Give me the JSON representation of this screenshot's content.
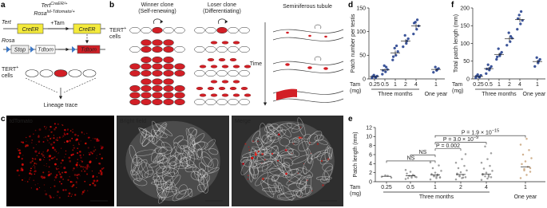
{
  "panel_a": {
    "label": "a",
    "genotype": [
      {
        "gene": "Tert",
        "sup": "CreER/+"
      },
      {
        "gene": "Rosa",
        "sup": "lsl-Tdtomato/+"
      }
    ],
    "tert": "Tert",
    "rosa": "Rosa",
    "creer": [
      "CreER",
      "CreER"
    ],
    "tam": "+Tam",
    "stop": "Stop",
    "tdtom": [
      "Tdtom",
      "Tdtom"
    ],
    "cells": {
      "name": "TERT",
      "sup": "+",
      "rest": "cells"
    },
    "lineage": "Lineage trace"
  },
  "panel_b": {
    "label": "b",
    "winner": [
      "Winner clone",
      "(Self-renewing)"
    ],
    "loser": [
      "Loser clone",
      "(Differentiating)"
    ],
    "tubule": "Seminiferous tubule",
    "cells": {
      "name": "TERT",
      "sup": "+",
      "rest": "cells"
    },
    "time": "Time"
  },
  "panel_c": {
    "label": "c",
    "images": [
      "tdTomato",
      "Bright field",
      "Merge"
    ]
  },
  "chart_data": [
    {
      "type": "strip",
      "panel_label": "d",
      "ylabel": "Patch number per testis",
      "xlabel": [
        "Tam",
        "(mg)"
      ],
      "categories": [
        "0.25",
        "0.5",
        "1",
        "2",
        "4",
        "1"
      ],
      "groups": [
        "Three months",
        "One year"
      ],
      "points": [
        [
          2,
          4,
          6,
          8,
          3,
          5
        ],
        [
          10,
          15,
          20,
          28,
          25,
          18
        ],
        [
          40,
          50,
          58,
          65,
          70,
          47
        ],
        [
          68,
          75,
          85,
          92,
          80
        ],
        [
          95,
          105,
          112,
          120,
          125,
          118
        ],
        [
          14,
          18,
          22,
          25,
          20
        ]
      ],
      "means": [
        5,
        19,
        55,
        80,
        112,
        20
      ],
      "sem": [
        1,
        3,
        5,
        4,
        5,
        2
      ],
      "point_color": "#1d3a8a",
      "mean_color": "#4a7fe0",
      "ylim": [
        0,
        150
      ],
      "yticks": [
        0,
        50,
        100,
        150
      ]
    },
    {
      "type": "strip",
      "panel_label": "f",
      "ylabel": "Total patch length (mm)",
      "xlabel": [
        "Tam",
        "(mg)"
      ],
      "categories": [
        "0.25",
        "0.5",
        "1",
        "2",
        "4",
        "1"
      ],
      "groups": [
        "Three months",
        "One year"
      ],
      "points": [
        [
          3,
          6,
          10,
          12,
          5,
          8
        ],
        [
          15,
          25,
          35,
          40,
          30,
          28
        ],
        [
          55,
          65,
          75,
          85,
          70,
          62
        ],
        [
          95,
          105,
          115,
          130,
          120
        ],
        [
          140,
          155,
          165,
          180,
          190,
          170
        ],
        [
          35,
          45,
          55,
          60,
          50
        ]
      ],
      "means": [
        7,
        29,
        69,
        113,
        167,
        49
      ],
      "sem": [
        1.5,
        4,
        4,
        6,
        7,
        4
      ],
      "point_color": "#1d3a8a",
      "mean_color": "#4a7fe0",
      "ylim": [
        0,
        200
      ],
      "yticks": [
        0,
        50,
        100,
        150,
        200
      ]
    },
    {
      "type": "strip",
      "panel_label": "e",
      "ylabel": "Patch length (mm)",
      "xlabel": [
        "Tam",
        "(mg)"
      ],
      "categories": [
        "0.25",
        "0.5",
        "1",
        "2",
        "4",
        "1"
      ],
      "groups": [
        "Three months",
        "One year"
      ],
      "points": [
        [
          1.1,
          1.3,
          0.9,
          1.4
        ],
        [
          0.6,
          0.9,
          1.1,
          1.3,
          1.5,
          1.8,
          2.2,
          1.0,
          0.8,
          1.4,
          2.6,
          1.2
        ],
        [
          0.5,
          0.8,
          1.0,
          1.2,
          1.4,
          1.7,
          2.0,
          2.4,
          3.0,
          3.6,
          4.3,
          1.1,
          0.9,
          1.3,
          1.6
        ],
        [
          0.5,
          0.8,
          1.0,
          1.2,
          1.5,
          1.8,
          2.1,
          2.5,
          3.0,
          3.5,
          4.2,
          5.0,
          6.1,
          1.3,
          0.9,
          1.6
        ],
        [
          0.4,
          0.7,
          1.0,
          1.2,
          1.4,
          1.7,
          2.0,
          2.4,
          2.9,
          3.5,
          4.2,
          5.0,
          6.3,
          7.8,
          1.1,
          1.5
        ],
        [
          0.8,
          1.5,
          2.2,
          2.8,
          3.3,
          3.9,
          4.5,
          5.2,
          6.0,
          7.0,
          8.2,
          9.5,
          3.0,
          2.5
        ]
      ],
      "means": [
        1.2,
        1.3,
        1.5,
        1.6,
        1.7,
        3.3
      ],
      "point_colors": [
        "#8f8f8f",
        "#8f8f8f",
        "#8f8f8f",
        "#8f8f8f",
        "#8f8f8f",
        "#c9a47c"
      ],
      "mean_color": "#3a6fd8",
      "ylim": [
        0,
        12
      ],
      "yticks": [
        0,
        2,
        4,
        6,
        8,
        10,
        12
      ],
      "annotations": [
        {
          "text": "NS"
        },
        {
          "text": "NS"
        },
        {
          "text": "P = 0.002"
        },
        {
          "text": "P = 3.0 × 10",
          "sup": "−9"
        },
        {
          "text": "P = 1.9 × 10",
          "sup": "−15"
        }
      ]
    }
  ]
}
